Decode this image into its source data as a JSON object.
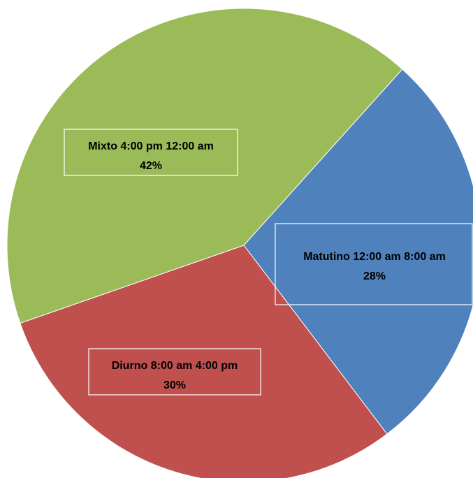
{
  "chart_data": {
    "type": "pie",
    "title": "",
    "slices": [
      {
        "label": "Matutino 12:00 am 8:00 am",
        "value": 28,
        "value_label": "28%",
        "color": "#4F81BD"
      },
      {
        "label": "Diurno 8:00 am 4:00 pm",
        "value": 30,
        "value_label": "30%",
        "color": "#C0504D"
      },
      {
        "label": "Mixto 4:00 pm 12:00 am",
        "value": 42,
        "value_label": "42%",
        "color": "#9BBB59"
      }
    ]
  }
}
